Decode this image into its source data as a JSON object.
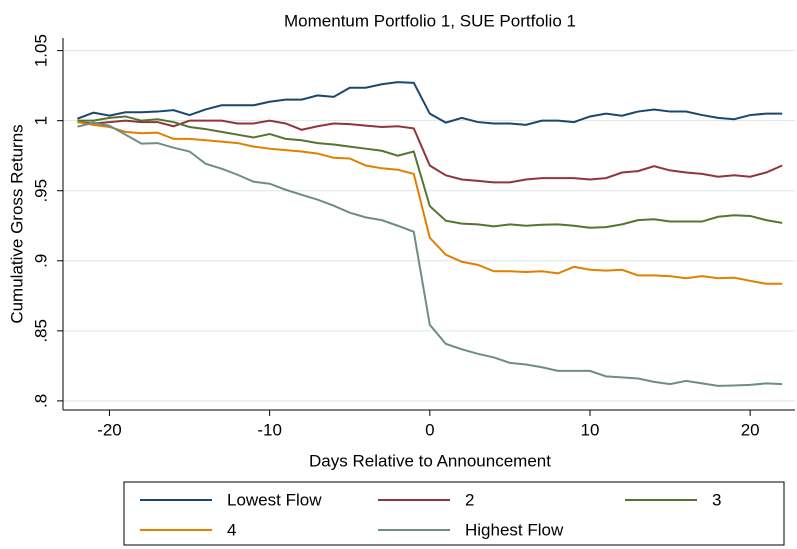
{
  "chart_data": {
    "type": "line",
    "title": "Momentum Portfolio 1, SUE Portfolio 1",
    "x_label": "Days Relative to Announcement",
    "y_label": "Cumulative Gross Returns",
    "x": [
      -22,
      -21,
      -20,
      -19,
      -18,
      -17,
      -16,
      -15,
      -14,
      -13,
      -12,
      -11,
      -10,
      -9,
      -8,
      -7,
      -6,
      -5,
      -4,
      -3,
      -2,
      -1,
      0,
      1,
      2,
      3,
      4,
      5,
      6,
      7,
      8,
      9,
      10,
      11,
      12,
      13,
      14,
      15,
      16,
      17,
      18,
      19,
      20,
      21,
      22
    ],
    "xlim": [
      -22.9,
      22.8
    ],
    "xticks": [
      -20,
      -10,
      0,
      10,
      20
    ],
    "ylim": [
      0.7935,
      1.059
    ],
    "yticks": [
      {
        "value": 0.8,
        "label": ".8"
      },
      {
        "value": 0.85,
        "label": ".85"
      },
      {
        "value": 0.9,
        "label": ".9"
      },
      {
        "value": 0.95,
        "label": ".95"
      },
      1,
      1.05
    ],
    "grid": true,
    "series": [
      {
        "name": "Lowest Flow",
        "color": "#1a476f",
        "values": [
          1.0014,
          1.0057,
          1.0036,
          1.006,
          1.006,
          1.0065,
          1.0075,
          1.004,
          1.008,
          1.011,
          1.011,
          1.011,
          1.0135,
          1.015,
          1.015,
          1.018,
          1.017,
          1.0235,
          1.0235,
          1.026,
          1.0275,
          1.027,
          1.005,
          0.9986,
          1.002,
          0.999,
          0.998,
          0.998,
          0.997,
          1.0,
          1.0,
          0.999,
          1.003,
          1.005,
          1.0035,
          1.0065,
          1.008,
          1.0065,
          1.0065,
          1.004,
          1.002,
          1.001,
          1.004,
          1.005,
          1.005
        ]
      },
      {
        "name": "2",
        "color": "#90353b",
        "values": [
          0.999,
          0.998,
          0.999,
          1.0,
          0.999,
          0.999,
          0.996,
          1.0,
          1.0,
          1.0,
          0.998,
          0.998,
          1.0,
          0.998,
          0.9935,
          0.996,
          0.998,
          0.9975,
          0.9965,
          0.9955,
          0.996,
          0.9945,
          0.968,
          0.961,
          0.958,
          0.957,
          0.956,
          0.956,
          0.958,
          0.959,
          0.959,
          0.959,
          0.958,
          0.959,
          0.963,
          0.964,
          0.9675,
          0.9645,
          0.963,
          0.962,
          0.96,
          0.961,
          0.96,
          0.963,
          0.968
        ]
      },
      {
        "name": "3",
        "color": "#55752f",
        "values": [
          1.0,
          1.0,
          1.002,
          1.003,
          1.0,
          1.001,
          0.999,
          0.9955,
          0.994,
          0.992,
          0.99,
          0.988,
          0.9905,
          0.987,
          0.986,
          0.984,
          0.983,
          0.9815,
          0.98,
          0.9785,
          0.975,
          0.978,
          0.939,
          0.9286,
          0.9265,
          0.926,
          0.9246,
          0.926,
          0.925,
          0.9257,
          0.926,
          0.925,
          0.9236,
          0.924,
          0.926,
          0.929,
          0.9296,
          0.928,
          0.928,
          0.928,
          0.9314,
          0.9325,
          0.932,
          0.929,
          0.927
        ]
      },
      {
        "name": "4",
        "color": "#e37e00",
        "values": [
          0.999,
          0.997,
          0.9955,
          0.992,
          0.991,
          0.9915,
          0.987,
          0.987,
          0.986,
          0.985,
          0.984,
          0.9815,
          0.98,
          0.979,
          0.978,
          0.9765,
          0.9735,
          0.973,
          0.968,
          0.966,
          0.965,
          0.962,
          0.9164,
          0.9043,
          0.8993,
          0.8971,
          0.8925,
          0.8925,
          0.892,
          0.8925,
          0.891,
          0.8957,
          0.8936,
          0.893,
          0.8936,
          0.8896,
          0.8896,
          0.889,
          0.8875,
          0.889,
          0.8875,
          0.888,
          0.8857,
          0.8836,
          0.8836
        ]
      },
      {
        "name": "Highest Flow",
        "color": "#6e8e84",
        "values": [
          0.9957,
          0.9986,
          0.9964,
          0.99,
          0.9836,
          0.984,
          0.9807,
          0.978,
          0.9693,
          0.9657,
          0.9614,
          0.9564,
          0.955,
          0.9507,
          0.9471,
          0.9436,
          0.9393,
          0.9343,
          0.931,
          0.929,
          0.925,
          0.9207,
          0.8543,
          0.8407,
          0.8368,
          0.8336,
          0.831,
          0.8271,
          0.826,
          0.824,
          0.8214,
          0.8214,
          0.8214,
          0.8175,
          0.8168,
          0.816,
          0.8136,
          0.812,
          0.8143,
          0.8125,
          0.8107,
          0.811,
          0.8114,
          0.8125,
          0.812
        ]
      }
    ]
  }
}
